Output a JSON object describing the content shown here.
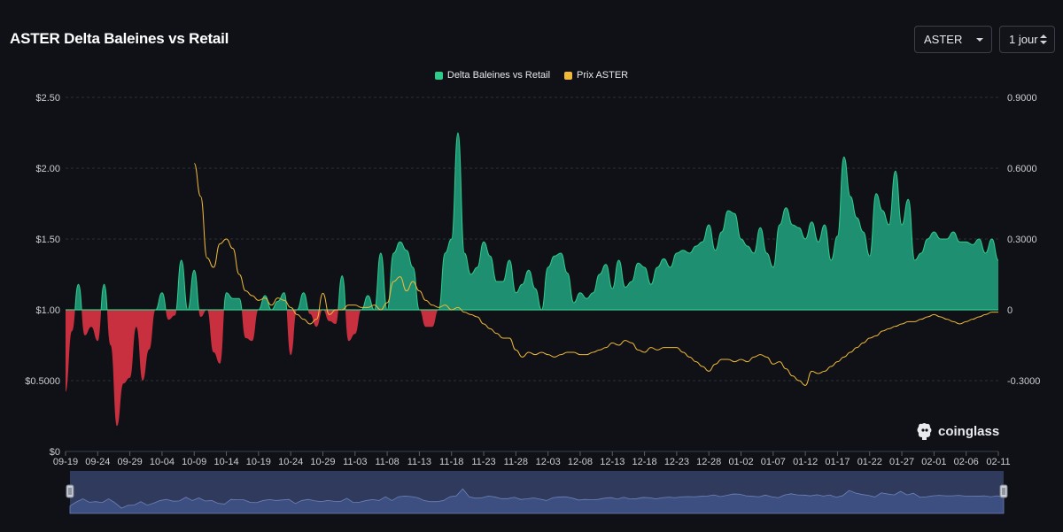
{
  "header": {
    "title": "ASTER Delta Baleines vs Retail",
    "coin_select": "ASTER",
    "interval_select": "1 jour"
  },
  "legend": [
    {
      "label": "Delta Baleines vs Retail",
      "color": "#2ecc8a"
    },
    {
      "label": "Prix ASTER",
      "color": "#f0b93a"
    }
  ],
  "brand": "coinglass",
  "colors": {
    "positive": "#2ecc8a",
    "positive_fill": "#1f8f72",
    "negative_fill": "#c8303f",
    "price_line": "#f0b93a",
    "grid": "#2a2e38",
    "navigator": "#2f3a5c"
  },
  "chart_data": {
    "type": "area",
    "title": "ASTER Delta Baleines vs Retail",
    "x_tick_labels": [
      "09-19",
      "09-24",
      "09-29",
      "10-04",
      "10-09",
      "10-14",
      "10-19",
      "10-24",
      "10-29",
      "11-03",
      "11-08",
      "11-13",
      "11-18",
      "11-23",
      "11-28",
      "12-03",
      "12-08",
      "12-13",
      "12-18",
      "12-23",
      "12-28",
      "01-02",
      "01-07",
      "01-12",
      "01-17",
      "01-22",
      "01-27",
      "02-01",
      "02-06",
      "02-11"
    ],
    "y_left": {
      "ticks": [
        "$0",
        "$0.5000",
        "$1.00",
        "$1.50",
        "$2.00",
        "$2.50"
      ],
      "range": [
        0,
        2.5
      ],
      "baseline": 1.0
    },
    "y_right": {
      "ticks": [
        "-0.3000",
        "0",
        "0.3000",
        "0.6000",
        "0.9000"
      ],
      "range": [
        -0.6,
        0.9
      ]
    },
    "grid": true,
    "legend_position": "top-center",
    "series": [
      {
        "name": "Delta Baleines vs Retail",
        "axis": "left",
        "x_index": [
          0,
          1,
          2,
          3,
          4,
          5,
          6,
          7,
          8,
          9,
          10,
          11,
          12,
          13,
          14,
          15,
          16,
          17,
          18,
          19,
          20,
          21,
          22,
          23,
          24,
          25,
          26,
          27,
          28,
          29,
          30,
          31,
          32,
          33,
          34,
          35,
          36,
          37,
          38,
          39,
          40,
          41,
          42,
          43,
          44,
          45,
          46,
          47,
          48,
          49,
          50,
          51,
          52,
          53,
          54,
          55,
          56,
          57,
          58,
          59,
          60,
          61,
          62,
          63,
          64,
          65,
          66,
          67,
          68,
          69,
          70,
          71,
          72,
          73,
          74,
          75,
          76,
          77,
          78,
          79,
          80,
          81,
          82,
          83,
          84,
          85,
          86,
          87,
          88,
          89,
          90,
          91,
          92,
          93,
          94,
          95,
          96,
          97,
          98,
          99,
          100,
          101,
          102,
          103,
          104,
          105,
          106,
          107,
          108,
          109,
          110,
          111,
          112,
          113,
          114,
          115,
          116,
          117,
          118,
          119,
          120,
          121,
          122,
          123,
          124,
          125,
          126,
          127,
          128,
          129,
          130,
          131,
          132,
          133,
          134,
          135,
          136,
          137,
          138,
          139,
          140,
          141,
          142,
          143,
          144,
          145
        ],
        "values": [
          0.42,
          0.85,
          1.18,
          0.82,
          0.88,
          0.78,
          1.18,
          0.75,
          0.18,
          0.48,
          0.52,
          0.88,
          0.5,
          0.72,
          1.0,
          1.12,
          0.93,
          0.96,
          1.35,
          1.0,
          1.28,
          0.95,
          1.0,
          0.7,
          0.62,
          1.12,
          1.08,
          1.08,
          0.8,
          0.78,
          1.0,
          1.1,
          1.0,
          1.06,
          1.12,
          0.68,
          1.0,
          1.12,
          0.97,
          0.88,
          1.0,
          0.92,
          0.9,
          1.24,
          0.78,
          0.83,
          1.0,
          1.1,
          1.0,
          1.4,
          1.0,
          1.4,
          1.48,
          1.42,
          1.3,
          1.0,
          0.88,
          0.88,
          1.0,
          1.4,
          1.5,
          2.25,
          1.4,
          1.25,
          1.3,
          1.48,
          1.38,
          1.2,
          1.2,
          1.35,
          1.12,
          1.18,
          1.28,
          1.15,
          1.0,
          1.3,
          1.38,
          1.4,
          1.26,
          1.05,
          1.12,
          1.08,
          1.12,
          1.25,
          1.32,
          1.15,
          1.35,
          1.16,
          1.2,
          1.33,
          1.3,
          1.18,
          1.3,
          1.36,
          1.3,
          1.4,
          1.42,
          1.4,
          1.45,
          1.48,
          1.6,
          1.42,
          1.55,
          1.7,
          1.68,
          1.5,
          1.45,
          1.4,
          1.58,
          1.4,
          1.3,
          1.6,
          1.72,
          1.6,
          1.58,
          1.5,
          1.62,
          1.48,
          1.6,
          1.35,
          1.52,
          2.08,
          1.8,
          1.65,
          1.55,
          1.38,
          1.82,
          1.7,
          1.6,
          1.98,
          1.6,
          1.78,
          1.35,
          1.4,
          1.5,
          1.55,
          1.5,
          1.5,
          1.55,
          1.48,
          1.48,
          1.46,
          1.5,
          1.4,
          1.5,
          1.35
        ]
      },
      {
        "name": "Prix ASTER",
        "axis": "right",
        "x_index": [
          20,
          21,
          22,
          23,
          24,
          25,
          26,
          27,
          28,
          29,
          30,
          31,
          32,
          33,
          34,
          35,
          36,
          37,
          38,
          39,
          40,
          41,
          42,
          43,
          44,
          45,
          46,
          47,
          48,
          49,
          50,
          51,
          52,
          53,
          54,
          55,
          56,
          57,
          58,
          59,
          60,
          61,
          62,
          63,
          64,
          65,
          66,
          67,
          68,
          69,
          70,
          71,
          72,
          73,
          74,
          75,
          76,
          77,
          78,
          79,
          80,
          81,
          82,
          83,
          84,
          85,
          86,
          87,
          88,
          89,
          90,
          91,
          92,
          93,
          94,
          95,
          96,
          97,
          98,
          99,
          100,
          101,
          102,
          103,
          104,
          105,
          106,
          107,
          108,
          109,
          110,
          111,
          112,
          113,
          114,
          115,
          116,
          117,
          118,
          119,
          120,
          121,
          122,
          123,
          124,
          125,
          126,
          127,
          128,
          129,
          130,
          131,
          132,
          133,
          134,
          135,
          136,
          137,
          138,
          139,
          140,
          141,
          142,
          143,
          144,
          145
        ],
        "values": [
          0.62,
          0.48,
          0.22,
          0.18,
          0.28,
          0.3,
          0.26,
          0.15,
          0.08,
          0.06,
          0.04,
          0.05,
          0.02,
          0.05,
          0.04,
          0.01,
          -0.02,
          -0.04,
          -0.06,
          -0.04,
          0.07,
          -0.02,
          0.0,
          0.0,
          0.02,
          0.02,
          0.01,
          0.01,
          0.02,
          0.0,
          0.03,
          0.12,
          0.14,
          0.08,
          0.12,
          0.08,
          0.04,
          0.02,
          0.01,
          0.02,
          0.0,
          0.01,
          -0.01,
          -0.02,
          -0.03,
          -0.06,
          -0.08,
          -0.1,
          -0.12,
          -0.12,
          -0.17,
          -0.2,
          -0.18,
          -0.19,
          -0.18,
          -0.19,
          -0.2,
          -0.19,
          -0.18,
          -0.18,
          -0.19,
          -0.19,
          -0.18,
          -0.17,
          -0.16,
          -0.14,
          -0.15,
          -0.13,
          -0.14,
          -0.17,
          -0.18,
          -0.16,
          -0.17,
          -0.16,
          -0.16,
          -0.16,
          -0.18,
          -0.2,
          -0.22,
          -0.24,
          -0.26,
          -0.23,
          -0.21,
          -0.21,
          -0.22,
          -0.21,
          -0.22,
          -0.2,
          -0.19,
          -0.2,
          -0.23,
          -0.22,
          -0.25,
          -0.28,
          -0.3,
          -0.32,
          -0.26,
          -0.27,
          -0.26,
          -0.24,
          -0.22,
          -0.2,
          -0.18,
          -0.16,
          -0.14,
          -0.12,
          -0.11,
          -0.09,
          -0.08,
          -0.07,
          -0.06,
          -0.05,
          -0.05,
          -0.04,
          -0.03,
          -0.02,
          -0.03,
          -0.04,
          -0.05,
          -0.06,
          -0.05,
          -0.04,
          -0.03,
          -0.02,
          -0.01,
          -0.01
        ]
      }
    ]
  }
}
